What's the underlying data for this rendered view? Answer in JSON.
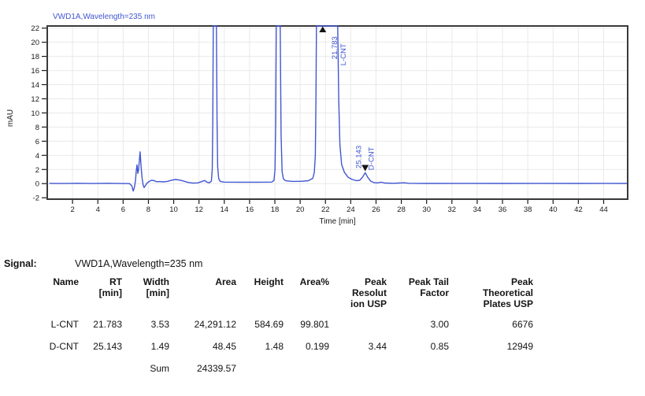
{
  "chart_data": {
    "type": "line",
    "title": "VWD1A,Wavelength=235 nm",
    "xlabel": "Time [min]",
    "ylabel": "mAU",
    "xlim": [
      0,
      45.9
    ],
    "ylim": [
      -2.2,
      22.3
    ],
    "xticks": [
      2,
      4,
      6,
      8,
      10,
      12,
      14,
      16,
      18,
      20,
      22,
      24,
      26,
      28,
      30,
      32,
      34,
      36,
      38,
      40,
      42,
      44
    ],
    "yticks": [
      -2,
      0,
      2,
      4,
      6,
      8,
      10,
      12,
      14,
      16,
      18,
      20,
      22
    ],
    "grid": true,
    "legend": "none",
    "line_color": "#4156d2",
    "grid_color": "#e9e9e9",
    "border_color": "#3a3a3a",
    "marker_color": "#141414",
    "series": [
      {
        "name": "VWD1A,Wavelength=235 nm",
        "points": [
          [
            0.2,
            0.04
          ],
          [
            1.2,
            0.02
          ],
          [
            2.4,
            0.05
          ],
          [
            3.6,
            0.02
          ],
          [
            4.8,
            0.05
          ],
          [
            5.8,
            0.02
          ],
          [
            6.5,
            0.0
          ],
          [
            6.68,
            -0.3
          ],
          [
            6.8,
            -1.05
          ],
          [
            6.9,
            -0.45
          ],
          [
            6.98,
            0.5
          ],
          [
            7.04,
            1.8
          ],
          [
            7.1,
            2.65
          ],
          [
            7.16,
            1.45
          ],
          [
            7.22,
            1.9
          ],
          [
            7.28,
            3.2
          ],
          [
            7.34,
            4.5
          ],
          [
            7.42,
            2.5
          ],
          [
            7.5,
            0.8
          ],
          [
            7.58,
            -0.15
          ],
          [
            7.66,
            -0.55
          ],
          [
            7.76,
            -0.3
          ],
          [
            7.88,
            0.05
          ],
          [
            8.05,
            0.3
          ],
          [
            8.25,
            0.48
          ],
          [
            8.45,
            0.42
          ],
          [
            8.65,
            0.27
          ],
          [
            8.9,
            0.3
          ],
          [
            9.15,
            0.25
          ],
          [
            9.5,
            0.32
          ],
          [
            9.85,
            0.5
          ],
          [
            10.15,
            0.58
          ],
          [
            10.5,
            0.5
          ],
          [
            10.8,
            0.35
          ],
          [
            11.1,
            0.18
          ],
          [
            11.5,
            0.07
          ],
          [
            11.9,
            0.1
          ],
          [
            12.2,
            0.28
          ],
          [
            12.45,
            0.45
          ],
          [
            12.62,
            0.22
          ],
          [
            12.82,
            0.12
          ],
          [
            12.98,
            0.35
          ],
          [
            13.05,
            2.0
          ],
          [
            13.09,
            9.0
          ],
          [
            13.13,
            24
          ],
          [
            13.38,
            24
          ],
          [
            13.43,
            9.0
          ],
          [
            13.48,
            2.4
          ],
          [
            13.56,
            0.7
          ],
          [
            13.68,
            0.32
          ],
          [
            13.95,
            0.22
          ],
          [
            15.2,
            0.2
          ],
          [
            16.6,
            0.2
          ],
          [
            17.75,
            0.22
          ],
          [
            17.93,
            0.45
          ],
          [
            18.01,
            2.0
          ],
          [
            18.07,
            9.0
          ],
          [
            18.11,
            24
          ],
          [
            18.42,
            24
          ],
          [
            18.49,
            7.0
          ],
          [
            18.57,
            1.7
          ],
          [
            18.68,
            0.65
          ],
          [
            18.88,
            0.4
          ],
          [
            19.4,
            0.32
          ],
          [
            20.1,
            0.33
          ],
          [
            20.65,
            0.42
          ],
          [
            21.0,
            0.75
          ],
          [
            21.12,
            1.6
          ],
          [
            21.2,
            4.0
          ],
          [
            21.25,
            12
          ],
          [
            21.29,
            24
          ],
          [
            22.97,
            24
          ],
          [
            23.05,
            12
          ],
          [
            23.14,
            5.5
          ],
          [
            23.28,
            2.7
          ],
          [
            23.5,
            1.6
          ],
          [
            23.8,
            0.9
          ],
          [
            24.12,
            0.58
          ],
          [
            24.45,
            0.42
          ],
          [
            24.72,
            0.48
          ],
          [
            24.95,
            0.95
          ],
          [
            25.14,
            1.55
          ],
          [
            25.34,
            0.9
          ],
          [
            25.58,
            0.35
          ],
          [
            25.82,
            0.15
          ],
          [
            26.1,
            0.1
          ],
          [
            26.4,
            0.2
          ],
          [
            26.7,
            0.08
          ],
          [
            27.4,
            0.05
          ],
          [
            28.2,
            0.12
          ],
          [
            28.6,
            0.05
          ],
          [
            30,
            0.03
          ],
          [
            33,
            0.04
          ],
          [
            36,
            0.03
          ],
          [
            39,
            0.04
          ],
          [
            42,
            0.03
          ],
          [
            44.5,
            0.04
          ],
          [
            45.8,
            0.03
          ]
        ]
      }
    ],
    "peaks": [
      {
        "rt": "21.783",
        "name": "L-CNT",
        "x": 21.783,
        "marker": "up",
        "marker_y": 22.3,
        "rt_dx": 18,
        "name_dx": 29,
        "rt_y": 17.6,
        "name_y": 16.7
      },
      {
        "rt": "25.143",
        "name": "D-CNT",
        "x": 25.143,
        "marker": "down",
        "marker_y": 1.75,
        "rt_dx": -5,
        "name_dx": 11,
        "rt_y": 2.15,
        "name_y": 1.9
      }
    ]
  },
  "signal": {
    "label": "Signal:",
    "value": "VWD1A,Wavelength=235 nm"
  },
  "table": {
    "headers": [
      {
        "id": "name",
        "lines": [
          "Name"
        ]
      },
      {
        "id": "rt",
        "lines": [
          "RT",
          "[min]"
        ]
      },
      {
        "id": "width",
        "lines": [
          "Width",
          "[min]"
        ]
      },
      {
        "id": "area",
        "lines": [
          "Area"
        ]
      },
      {
        "id": "height",
        "lines": [
          "Height"
        ]
      },
      {
        "id": "area-percent",
        "lines": [
          "Area%"
        ]
      },
      {
        "id": "peak-resolution-usp",
        "lines": [
          "Peak",
          "Resolut",
          "ion USP"
        ]
      },
      {
        "id": "peak-tail-factor",
        "lines": [
          "Peak Tail",
          "Factor"
        ]
      },
      {
        "id": "peak-theoretical-plates-usp",
        "lines": [
          "Peak",
          "Theoretical",
          "Plates USP"
        ]
      }
    ],
    "rows": [
      {
        "id": "L-CNT",
        "cells": [
          "L-CNT",
          "21.783",
          "3.53",
          "24,291.12",
          "584.69",
          "99.801",
          "",
          "3.00",
          "6676"
        ]
      },
      {
        "id": "D-CNT",
        "cells": [
          "D-CNT",
          "25.143",
          "1.49",
          "48.45",
          "1.48",
          "0.199",
          "3.44",
          "0.85",
          "12949"
        ]
      },
      {
        "id": "sum",
        "cells": [
          "",
          "",
          "Sum",
          "24339.57",
          "",
          "",
          "",
          "",
          ""
        ]
      }
    ]
  }
}
